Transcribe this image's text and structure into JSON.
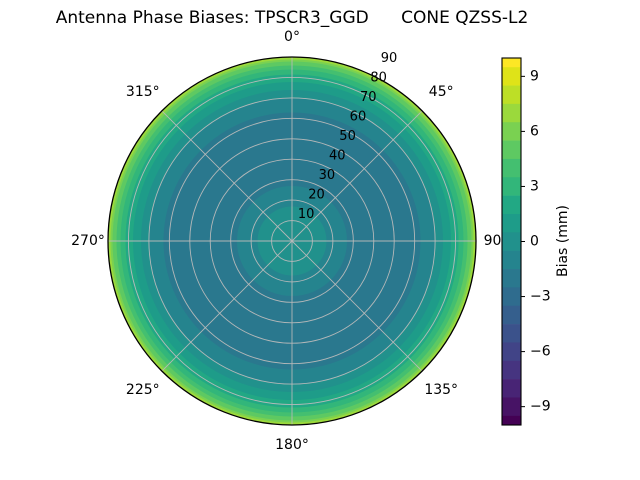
{
  "figure": {
    "title": "Antenna Phase Biases: TPSCR3_GGD      CONE QZSS-L2",
    "background": "#ffffff"
  },
  "chart_data": {
    "type": "heatmap",
    "subtype": "polar_filled_contour",
    "title": "Antenna Phase Biases: TPSCR3_GGD      CONE QZSS-L2",
    "antenna": "TPSCR3_GGD",
    "cone_system": "CONE QZSS-L2",
    "azimuth_ticks": {
      "angles_deg": [
        0,
        45,
        90,
        135,
        180,
        225,
        270,
        315
      ],
      "labels": [
        "0°",
        "45°",
        "90°",
        "135°",
        "180°",
        "225°",
        "270°",
        "315°"
      ]
    },
    "radial_ticks": {
      "values": [
        10,
        20,
        30,
        40,
        50,
        60,
        70,
        80,
        90
      ],
      "labels": [
        "10",
        "20",
        "30",
        "40",
        "50",
        "60",
        "70",
        "80",
        "90"
      ],
      "max_deg": 90
    },
    "colorbar": {
      "label": "Bias (mm)",
      "tick_values": [
        9,
        6,
        3,
        0,
        -3,
        -6,
        -9
      ],
      "tick_labels": [
        "9",
        "6",
        "3",
        "0",
        "−3",
        "−6",
        "−9"
      ],
      "vmin": -10,
      "vmax": 10,
      "band_step": 1
    },
    "colormap": {
      "name": "viridis",
      "stops": [
        [
          0.0,
          "#440154"
        ],
        [
          0.05,
          "#471365"
        ],
        [
          0.1,
          "#482475"
        ],
        [
          0.15,
          "#463480"
        ],
        [
          0.2,
          "#414487"
        ],
        [
          0.25,
          "#3b528b"
        ],
        [
          0.3,
          "#355f8d"
        ],
        [
          0.35,
          "#2f6c8e"
        ],
        [
          0.4,
          "#2a788e"
        ],
        [
          0.45,
          "#25848e"
        ],
        [
          0.5,
          "#21918c"
        ],
        [
          0.55,
          "#1e9c89"
        ],
        [
          0.6,
          "#22a884"
        ],
        [
          0.65,
          "#32b67a"
        ],
        [
          0.7,
          "#44bf70"
        ],
        [
          0.75,
          "#5ec962"
        ],
        [
          0.8,
          "#7ad151"
        ],
        [
          0.85,
          "#9bd93c"
        ],
        [
          0.9,
          "#bddf26"
        ],
        [
          0.95,
          "#dfe318"
        ],
        [
          1.0,
          "#fde725"
        ]
      ]
    },
    "azimuthal_symmetry": true,
    "radial_profile_bias_mm": [
      [
        0,
        0.3
      ],
      [
        10,
        0.1
      ],
      [
        17,
        -0.5
      ],
      [
        27,
        -1.5
      ],
      [
        40,
        -2.3
      ],
      [
        55,
        -2.3
      ],
      [
        63,
        -1.5
      ],
      [
        70,
        -0.5
      ],
      [
        74,
        0.5
      ],
      [
        78,
        1.5
      ],
      [
        81.5,
        2.5
      ],
      [
        84,
        3.5
      ],
      [
        86,
        4.5
      ],
      [
        88,
        5.5
      ],
      [
        89,
        6.5
      ],
      [
        90,
        7.6
      ]
    ],
    "grid": {
      "color": "#bababa",
      "outline_color": "#000000"
    }
  }
}
